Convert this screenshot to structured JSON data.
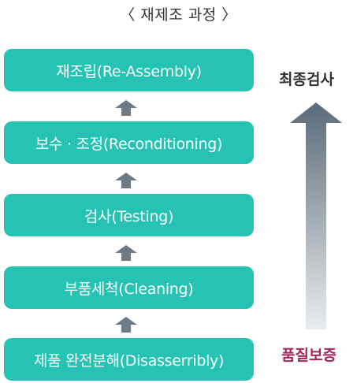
{
  "title": "〈 재제조 과정 〉",
  "colors": {
    "step_fill": "#26c2b3",
    "small_arrow": "#6c7b86",
    "final_label": "#333333",
    "quality_label": "#a8245e",
    "big_arrow_top": "#5a6b79",
    "big_arrow_bottom": "#e9ecee"
  },
  "steps": [
    {
      "label": "재조립(Re-Assembly)"
    },
    {
      "label": "보수 · 조정(Reconditioning)"
    },
    {
      "label": "검사(Testing)"
    },
    {
      "label": "부품세척(Cleaning)"
    },
    {
      "label": "제품 완전분해(Disasserribly)"
    }
  ],
  "side": {
    "top_label": "최종검사",
    "bottom_label": "품질보증"
  }
}
